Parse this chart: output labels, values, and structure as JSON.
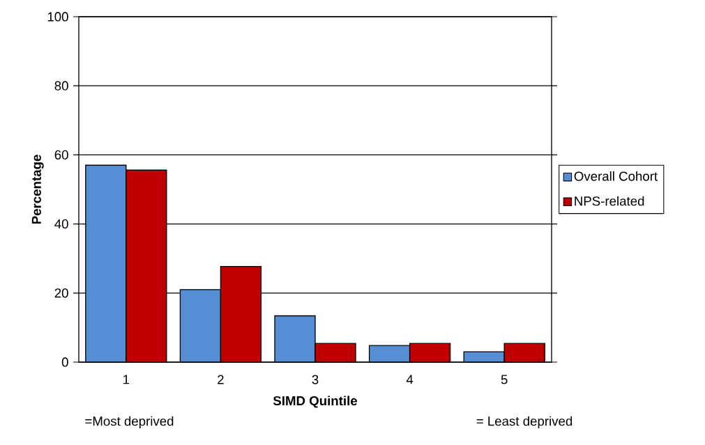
{
  "chart_data": {
    "type": "bar",
    "xlabel": "SIMD Quintile",
    "ylabel": "Percentage",
    "categories": [
      "1",
      "2",
      "3",
      "4",
      "5"
    ],
    "series": [
      {
        "name": "Overall Cohort",
        "color": "#558ed5",
        "values": [
          57.0,
          21.0,
          13.4,
          4.8,
          3.0
        ]
      },
      {
        "name": "NPS-related",
        "color": "#c00000",
        "values": [
          55.6,
          27.7,
          5.4,
          5.4,
          5.4
        ]
      }
    ],
    "ylim": [
      0,
      100
    ],
    "yticks": [
      0,
      20,
      40,
      60,
      80,
      100
    ],
    "grid": "y",
    "legend": "right",
    "annotations": [
      "=Most deprived",
      "= Least deprived"
    ]
  }
}
